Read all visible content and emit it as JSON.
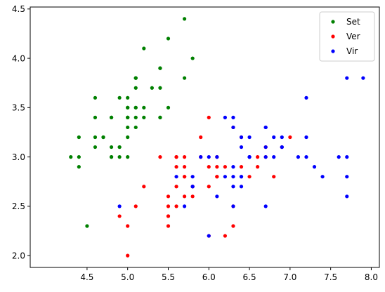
{
  "chart_data": {
    "type": "scatter",
    "title": "",
    "xlabel": "",
    "ylabel": "",
    "xlim": [
      3.8,
      8.1
    ],
    "ylim": [
      1.88,
      4.52
    ],
    "xticks": [
      "4.5",
      "5.0",
      "5.5",
      "6.0",
      "6.5",
      "7.0",
      "7.5",
      "8.0"
    ],
    "xtick_values": [
      4.5,
      5.0,
      5.5,
      6.0,
      6.5,
      7.0,
      7.5,
      8.0
    ],
    "yticks": [
      "2.0",
      "2.5",
      "3.0",
      "3.5",
      "4.0",
      "4.5"
    ],
    "ytick_values": [
      2.0,
      2.5,
      3.0,
      3.5,
      4.0,
      4.5
    ],
    "grid": false,
    "legend_position": "top-right",
    "series": [
      {
        "name": "Set",
        "color": "#008000",
        "points": [
          [
            5.1,
            3.5
          ],
          [
            4.9,
            3.0
          ],
          [
            4.7,
            3.2
          ],
          [
            4.6,
            3.1
          ],
          [
            5.0,
            3.6
          ],
          [
            5.4,
            3.9
          ],
          [
            4.6,
            3.4
          ],
          [
            5.0,
            3.4
          ],
          [
            4.4,
            2.9
          ],
          [
            4.9,
            3.1
          ],
          [
            5.4,
            3.7
          ],
          [
            4.8,
            3.4
          ],
          [
            4.8,
            3.0
          ],
          [
            4.3,
            3.0
          ],
          [
            5.8,
            4.0
          ],
          [
            5.7,
            4.4
          ],
          [
            5.4,
            3.9
          ],
          [
            5.1,
            3.5
          ],
          [
            5.7,
            3.8
          ],
          [
            5.1,
            3.8
          ],
          [
            5.4,
            3.4
          ],
          [
            5.1,
            3.7
          ],
          [
            4.6,
            3.6
          ],
          [
            5.1,
            3.3
          ],
          [
            4.8,
            3.4
          ],
          [
            5.0,
            3.0
          ],
          [
            5.0,
            3.4
          ],
          [
            5.2,
            3.5
          ],
          [
            5.2,
            3.4
          ],
          [
            4.7,
            3.2
          ],
          [
            4.8,
            3.1
          ],
          [
            5.4,
            3.4
          ],
          [
            5.2,
            4.1
          ],
          [
            5.5,
            4.2
          ],
          [
            4.9,
            3.1
          ],
          [
            5.0,
            3.2
          ],
          [
            5.5,
            3.5
          ],
          [
            4.9,
            3.6
          ],
          [
            4.4,
            3.0
          ],
          [
            5.1,
            3.4
          ],
          [
            5.0,
            3.5
          ],
          [
            4.5,
            2.3
          ],
          [
            4.4,
            3.2
          ],
          [
            5.0,
            3.5
          ],
          [
            5.1,
            3.8
          ],
          [
            4.8,
            3.0
          ],
          [
            5.1,
            3.8
          ],
          [
            4.6,
            3.2
          ],
          [
            5.3,
            3.7
          ],
          [
            5.0,
            3.3
          ]
        ]
      },
      {
        "name": "Ver",
        "color": "#ff0000",
        "points": [
          [
            7.0,
            3.2
          ],
          [
            6.4,
            3.2
          ],
          [
            6.9,
            3.1
          ],
          [
            5.5,
            2.3
          ],
          [
            6.5,
            2.8
          ],
          [
            5.7,
            2.8
          ],
          [
            6.3,
            3.3
          ],
          [
            4.9,
            2.4
          ],
          [
            6.6,
            2.9
          ],
          [
            5.2,
            2.7
          ],
          [
            5.0,
            2.0
          ],
          [
            5.9,
            3.0
          ],
          [
            6.0,
            2.2
          ],
          [
            6.1,
            2.9
          ],
          [
            5.6,
            2.9
          ],
          [
            6.7,
            3.1
          ],
          [
            5.6,
            3.0
          ],
          [
            5.8,
            2.7
          ],
          [
            6.2,
            2.2
          ],
          [
            5.6,
            2.5
          ],
          [
            5.9,
            3.2
          ],
          [
            6.1,
            2.8
          ],
          [
            6.3,
            2.5
          ],
          [
            6.1,
            2.8
          ],
          [
            6.4,
            2.9
          ],
          [
            6.6,
            3.0
          ],
          [
            6.8,
            2.8
          ],
          [
            6.7,
            3.0
          ],
          [
            6.0,
            2.9
          ],
          [
            5.7,
            2.6
          ],
          [
            5.5,
            2.4
          ],
          [
            5.5,
            2.4
          ],
          [
            5.8,
            2.7
          ],
          [
            6.0,
            2.7
          ],
          [
            5.4,
            3.0
          ],
          [
            6.0,
            3.4
          ],
          [
            6.7,
            3.1
          ],
          [
            6.3,
            2.3
          ],
          [
            5.6,
            3.0
          ],
          [
            5.5,
            2.5
          ],
          [
            5.5,
            2.6
          ],
          [
            6.1,
            3.0
          ],
          [
            5.8,
            2.6
          ],
          [
            5.0,
            2.3
          ],
          [
            5.6,
            2.7
          ],
          [
            5.7,
            3.0
          ],
          [
            5.7,
            2.9
          ],
          [
            6.2,
            2.9
          ],
          [
            5.1,
            2.5
          ],
          [
            5.7,
            2.8
          ]
        ]
      },
      {
        "name": "Vir",
        "color": "#0000ff",
        "points": [
          [
            6.3,
            3.3
          ],
          [
            5.8,
            2.7
          ],
          [
            7.1,
            3.0
          ],
          [
            6.3,
            2.9
          ],
          [
            6.5,
            3.0
          ],
          [
            7.6,
            3.0
          ],
          [
            4.9,
            2.5
          ],
          [
            7.3,
            2.9
          ],
          [
            6.7,
            2.5
          ],
          [
            7.2,
            3.6
          ],
          [
            6.5,
            3.2
          ],
          [
            6.4,
            2.7
          ],
          [
            6.8,
            3.0
          ],
          [
            5.7,
            2.5
          ],
          [
            5.8,
            2.8
          ],
          [
            6.4,
            3.2
          ],
          [
            6.5,
            3.0
          ],
          [
            7.7,
            3.8
          ],
          [
            7.7,
            2.6
          ],
          [
            6.0,
            2.2
          ],
          [
            6.9,
            3.2
          ],
          [
            5.6,
            2.8
          ],
          [
            7.7,
            2.8
          ],
          [
            6.3,
            2.7
          ],
          [
            6.7,
            3.3
          ],
          [
            7.2,
            3.2
          ],
          [
            6.2,
            2.8
          ],
          [
            6.1,
            3.0
          ],
          [
            6.4,
            2.8
          ],
          [
            7.2,
            3.0
          ],
          [
            7.4,
            2.8
          ],
          [
            7.9,
            3.8
          ],
          [
            6.4,
            2.8
          ],
          [
            6.3,
            2.8
          ],
          [
            6.1,
            2.6
          ],
          [
            7.7,
            3.0
          ],
          [
            6.3,
            3.4
          ],
          [
            6.4,
            3.1
          ],
          [
            6.0,
            3.0
          ],
          [
            6.9,
            3.1
          ],
          [
            6.7,
            3.1
          ],
          [
            6.9,
            3.1
          ],
          [
            5.8,
            2.7
          ],
          [
            6.8,
            3.2
          ],
          [
            6.7,
            3.3
          ],
          [
            6.7,
            3.0
          ],
          [
            6.3,
            2.5
          ],
          [
            6.5,
            3.0
          ],
          [
            6.2,
            3.4
          ],
          [
            5.9,
            3.0
          ]
        ]
      }
    ]
  }
}
